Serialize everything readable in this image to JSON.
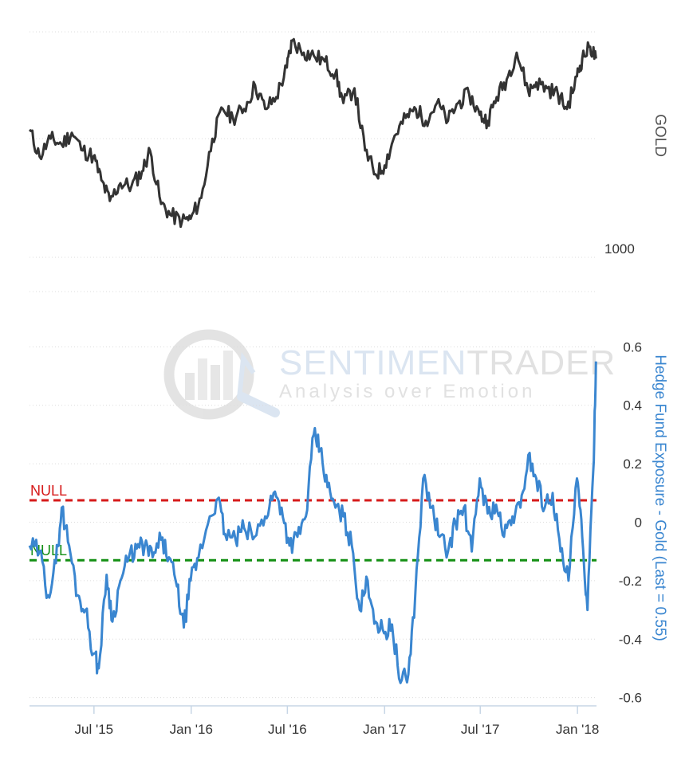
{
  "chart_data": [
    {
      "type": "line",
      "title": "",
      "xlabel": "",
      "ylabel": "GOLD",
      "ylim": [
        1000,
        1380
      ],
      "yticks": [
        1000
      ],
      "grid": true,
      "colors": {
        "series": "#333333"
      },
      "series": [
        {
          "name": "GOLD",
          "x": [
            "2015-03-01",
            "2015-03-20",
            "2015-04-10",
            "2015-05-01",
            "2015-05-20",
            "2015-06-10",
            "2015-06-30",
            "2015-07-15",
            "2015-07-31",
            "2015-08-20",
            "2015-09-10",
            "2015-09-30",
            "2015-10-15",
            "2015-11-05",
            "2015-11-25",
            "2015-12-15",
            "2015-12-31",
            "2016-01-20",
            "2016-02-10",
            "2016-03-01",
            "2016-03-20",
            "2016-04-10",
            "2016-05-01",
            "2016-05-20",
            "2016-06-10",
            "2016-06-30",
            "2016-07-10",
            "2016-08-01",
            "2016-08-20",
            "2016-09-10",
            "2016-09-30",
            "2016-10-15",
            "2016-11-05",
            "2016-11-25",
            "2016-12-15",
            "2017-01-01",
            "2017-01-20",
            "2017-02-10",
            "2017-03-01",
            "2017-03-20",
            "2017-04-10",
            "2017-05-01",
            "2017-05-20",
            "2017-06-10",
            "2017-06-30",
            "2017-07-15",
            "2017-08-01",
            "2017-08-20",
            "2017-09-08",
            "2017-09-30",
            "2017-10-15",
            "2017-11-05",
            "2017-11-25",
            "2017-12-12",
            "2017-12-31",
            "2018-01-10",
            "2018-01-25",
            "2018-02-05"
          ],
          "values": [
            1215,
            1170,
            1200,
            1190,
            1210,
            1180,
            1170,
            1130,
            1095,
            1125,
            1120,
            1145,
            1180,
            1090,
            1070,
            1062,
            1065,
            1100,
            1200,
            1250,
            1235,
            1250,
            1290,
            1250,
            1270,
            1320,
            1365,
            1345,
            1340,
            1330,
            1310,
            1260,
            1285,
            1180,
            1140,
            1155,
            1205,
            1235,
            1250,
            1230,
            1260,
            1230,
            1260,
            1275,
            1240,
            1230,
            1270,
            1300,
            1345,
            1280,
            1295,
            1285,
            1275,
            1250,
            1305,
            1335,
            1355,
            1335
          ]
        }
      ]
    },
    {
      "type": "line",
      "title": "",
      "xlabel": "",
      "ylabel": "Hedge Fund Exposure - Gold (Last = 0.55)",
      "ylim": [
        -0.65,
        0.65
      ],
      "yticks": [
        -0.6,
        -0.4,
        -0.2,
        0,
        0.2,
        0.4,
        0.6
      ],
      "xticks": [
        "Jul '15",
        "Jan '16",
        "Jul '16",
        "Jan '17",
        "Jul '17",
        "Jan '18"
      ],
      "grid": true,
      "colors": {
        "series": "#3a86d0",
        "ref_upper": "#d61a1a",
        "ref_lower": "#138f13"
      },
      "reference_lines": [
        {
          "label": "NULL",
          "value": 0.075
        },
        {
          "label": "NULL",
          "value": -0.13
        }
      ],
      "series": [
        {
          "name": "Hedge Fund Exposure - Gold",
          "x": [
            "2015-03-01",
            "2015-03-20",
            "2015-04-05",
            "2015-04-20",
            "2015-05-01",
            "2015-05-15",
            "2015-05-31",
            "2015-06-15",
            "2015-06-30",
            "2015-07-10",
            "2015-07-25",
            "2015-08-05",
            "2015-08-20",
            "2015-09-05",
            "2015-09-20",
            "2015-10-05",
            "2015-10-20",
            "2015-11-05",
            "2015-11-20",
            "2015-12-05",
            "2015-12-18",
            "2015-12-31",
            "2016-01-15",
            "2016-02-05",
            "2016-02-20",
            "2016-03-05",
            "2016-03-25",
            "2016-04-10",
            "2016-04-30",
            "2016-05-20",
            "2016-06-05",
            "2016-06-20",
            "2016-07-05",
            "2016-07-20",
            "2016-08-05",
            "2016-08-20",
            "2016-09-01",
            "2016-09-15",
            "2016-09-30",
            "2016-10-15",
            "2016-10-31",
            "2016-11-15",
            "2016-11-30",
            "2016-12-15",
            "2016-12-31",
            "2017-01-15",
            "2017-01-31",
            "2017-02-15",
            "2017-02-28",
            "2017-03-15",
            "2017-03-31",
            "2017-04-15",
            "2017-05-01",
            "2017-05-15",
            "2017-05-31",
            "2017-06-15",
            "2017-06-30",
            "2017-07-15",
            "2017-07-31",
            "2017-08-15",
            "2017-08-31",
            "2017-09-15",
            "2017-09-30",
            "2017-10-15",
            "2017-10-31",
            "2017-11-15",
            "2017-11-30",
            "2017-12-15",
            "2017-12-31",
            "2018-01-10",
            "2018-01-20",
            "2018-01-31",
            "2018-02-05"
          ],
          "values": [
            -0.08,
            -0.1,
            -0.25,
            -0.14,
            0.05,
            -0.08,
            -0.25,
            -0.3,
            -0.45,
            -0.5,
            -0.18,
            -0.34,
            -0.2,
            -0.12,
            -0.09,
            -0.08,
            -0.12,
            -0.06,
            -0.12,
            -0.22,
            -0.36,
            -0.2,
            -0.12,
            0.02,
            0.08,
            -0.04,
            -0.06,
            -0.02,
            -0.05,
            0.02,
            0.1,
            0.05,
            -0.08,
            -0.05,
            0.02,
            0.3,
            0.25,
            0.12,
            0.05,
            0.02,
            -0.08,
            -0.3,
            -0.2,
            -0.34,
            -0.38,
            -0.35,
            -0.55,
            -0.52,
            -0.25,
            0.15,
            0.05,
            -0.05,
            -0.1,
            0.0,
            0.05,
            -0.1,
            0.15,
            0.03,
            0.06,
            -0.05,
            0.02,
            0.05,
            0.23,
            0.15,
            0.05,
            0.1,
            -0.1,
            -0.2,
            0.15,
            -0.05,
            -0.3,
            0.18,
            0.55
          ]
        }
      ]
    }
  ],
  "watermark": {
    "title_part1": "SENTIMEN",
    "title_part2": "TRADER",
    "subtitle": "Analysis over Emotion"
  }
}
